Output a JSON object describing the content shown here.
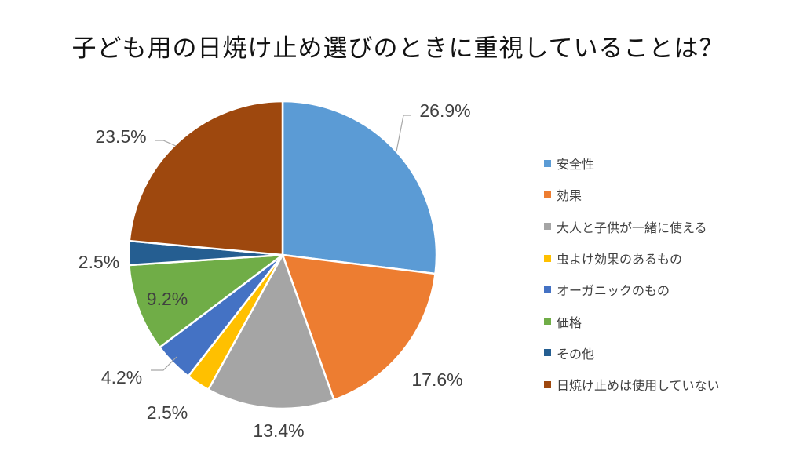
{
  "title": "子ども用の日焼け止め選びのときに重視していることは？",
  "chart_data": {
    "type": "pie",
    "title": "子ども用の日焼け止め選びのときに重視していることは？",
    "legend_position": "right",
    "slices": [
      {
        "label": "安全性",
        "value": 26.9,
        "display": "26.9%",
        "color": "#5B9BD5"
      },
      {
        "label": "効果",
        "value": 17.6,
        "display": "17.6%",
        "color": "#ED7D31"
      },
      {
        "label": "大人と子供が一緒に使える",
        "value": 13.4,
        "display": "13.4%",
        "color": "#A5A5A5"
      },
      {
        "label": "虫よけ効果のあるもの",
        "value": 2.5,
        "display": "2.5%",
        "color": "#FFC000"
      },
      {
        "label": "オーガニックのもの",
        "value": 4.2,
        "display": "4.2%",
        "color": "#4472C4"
      },
      {
        "label": "価格",
        "value": 9.2,
        "display": "9.2%",
        "color": "#70AD47"
      },
      {
        "label": "その他",
        "value": 2.5,
        "display": "2.5%",
        "color": "#255E91"
      },
      {
        "label": "日焼け止めは使用していない",
        "value": 23.5,
        "display": "23.5%",
        "color": "#9E480E"
      }
    ]
  }
}
